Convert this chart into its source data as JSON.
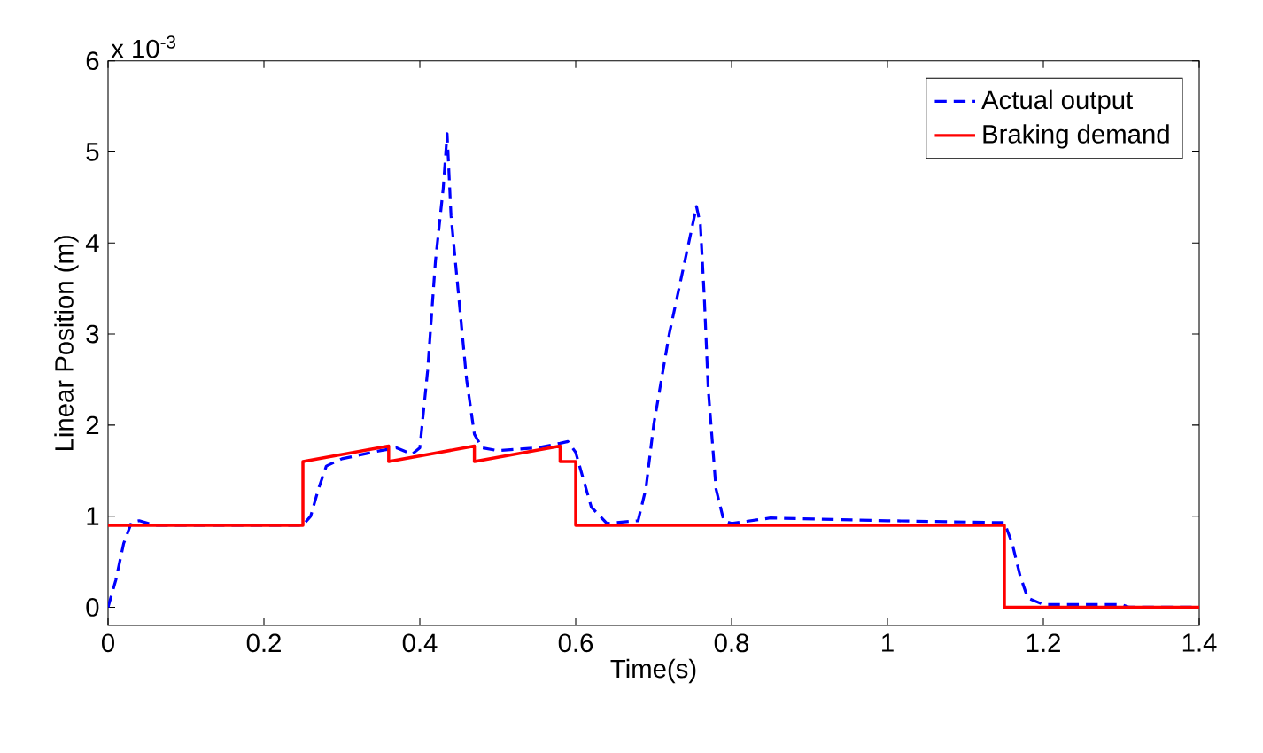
{
  "chart_data": {
    "type": "line",
    "xlabel": "Time(s)",
    "ylabel": "Linear Position (m)",
    "annotations": [
      "x 10$^{-3}$"
    ],
    "xlim": [
      0,
      1.4
    ],
    "xticks": [
      0,
      0.2,
      0.4,
      0.6,
      0.8,
      1,
      1.2,
      1.4
    ],
    "ylim": [
      -0.2,
      6
    ],
    "yticks": [
      0,
      1,
      2,
      3,
      4,
      5,
      6
    ],
    "legend": "top right",
    "grid": false,
    "series": [
      {
        "name": "Actual output",
        "color": "#0000ff",
        "line_style": "dashed",
        "x": [
          0,
          0.01,
          0.02,
          0.03,
          0.04,
          0.06,
          0.25,
          0.26,
          0.27,
          0.28,
          0.3,
          0.35,
          0.37,
          0.39,
          0.4,
          0.41,
          0.42,
          0.43,
          0.435,
          0.44,
          0.45,
          0.46,
          0.47,
          0.48,
          0.5,
          0.55,
          0.58,
          0.59,
          0.6,
          0.61,
          0.62,
          0.64,
          0.68,
          0.69,
          0.7,
          0.72,
          0.74,
          0.75,
          0.755,
          0.76,
          0.765,
          0.77,
          0.78,
          0.79,
          0.8,
          0.85,
          1.0,
          1.14,
          1.15,
          1.16,
          1.17,
          1.18,
          1.2,
          1.3,
          1.31,
          1.4
        ],
        "values": [
          0,
          0.3,
          0.7,
          0.93,
          0.95,
          0.9,
          0.9,
          1.0,
          1.3,
          1.55,
          1.63,
          1.72,
          1.75,
          1.68,
          1.75,
          2.6,
          3.8,
          4.6,
          5.2,
          4.3,
          3.4,
          2.5,
          1.9,
          1.75,
          1.72,
          1.75,
          1.8,
          1.82,
          1.7,
          1.4,
          1.1,
          0.92,
          0.95,
          1.3,
          2.0,
          3.0,
          3.8,
          4.2,
          4.4,
          4.2,
          3.4,
          2.4,
          1.3,
          0.95,
          0.92,
          0.98,
          0.95,
          0.93,
          0.93,
          0.7,
          0.35,
          0.1,
          0.03,
          0.03,
          0,
          0
        ]
      },
      {
        "name": "Braking demand",
        "color": "#ff0000",
        "line_style": "solid",
        "x": [
          0,
          0.25,
          0.25,
          0.36,
          0.36,
          0.47,
          0.47,
          0.58,
          0.58,
          0.6,
          0.6,
          1.15,
          1.15,
          1.4
        ],
        "values": [
          0.9,
          0.9,
          1.6,
          1.77,
          1.6,
          1.77,
          1.6,
          1.77,
          1.6,
          1.6,
          0.9,
          0.9,
          0,
          0
        ]
      }
    ]
  }
}
